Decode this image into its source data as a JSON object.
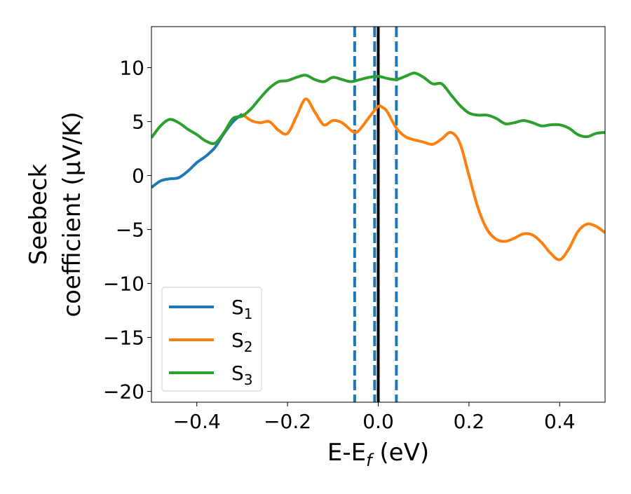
{
  "chart_data": {
    "type": "line",
    "title": "",
    "xlabel": "E-E",
    "xlabel_sub": "f",
    "xlabel_suffix": " (eV)",
    "ylabel_line1": "Seebeck",
    "ylabel_line2": "coefficient  (μV/K)",
    "xlim": [
      -0.5,
      0.5
    ],
    "ylim": [
      -21,
      13.8
    ],
    "xticks": [
      -0.4,
      -0.2,
      0.0,
      0.2,
      0.4
    ],
    "xtick_labels": [
      "−0.4",
      "−0.2",
      "0.0",
      "0.2",
      "0.4"
    ],
    "yticks": [
      10,
      5,
      0,
      -5,
      -10,
      -15,
      -20
    ],
    "ytick_labels": [
      "10",
      "5",
      "0",
      "−5",
      "−10",
      "−15",
      "−20"
    ],
    "grid": false,
    "legend_position": "lower-left",
    "vlines": [
      {
        "x": -0.052,
        "style": "dashed",
        "color": "#1f77b4"
      },
      {
        "x": -0.008,
        "style": "dashed",
        "color": "#1f77b4"
      },
      {
        "x": 0.0,
        "style": "solid",
        "color": "#000000"
      },
      {
        "x": 0.04,
        "style": "dashed",
        "color": "#1f77b4"
      }
    ],
    "series": [
      {
        "name": "S",
        "sub": "1",
        "color": "#1f77b4",
        "x": [
          -0.5,
          -0.48,
          -0.46,
          -0.44,
          -0.42,
          -0.4,
          -0.38,
          -0.36,
          -0.34,
          -0.32,
          -0.3
        ],
        "y": [
          -1.1,
          -0.5,
          -0.3,
          -0.2,
          0.4,
          1.2,
          1.8,
          2.6,
          3.9,
          5.0,
          5.7
        ]
      },
      {
        "name": "S",
        "sub": "2",
        "color": "#ff7f0e",
        "x": [
          -0.3,
          -0.28,
          -0.26,
          -0.24,
          -0.22,
          -0.2,
          -0.18,
          -0.16,
          -0.14,
          -0.12,
          -0.1,
          -0.08,
          -0.06,
          -0.05,
          -0.04,
          -0.02,
          0.0,
          0.01,
          0.02,
          0.04,
          0.06,
          0.08,
          0.1,
          0.12,
          0.14,
          0.16,
          0.18,
          0.2,
          0.22,
          0.24,
          0.26,
          0.28,
          0.3,
          0.32,
          0.34,
          0.36,
          0.38,
          0.4,
          0.42,
          0.44,
          0.46,
          0.48,
          0.5
        ],
        "y": [
          5.7,
          5.1,
          4.9,
          5.0,
          4.2,
          3.9,
          5.5,
          7.1,
          5.9,
          4.7,
          5.1,
          4.9,
          4.2,
          4.0,
          4.3,
          5.4,
          6.4,
          6.3,
          5.9,
          4.4,
          3.6,
          3.3,
          3.1,
          2.9,
          3.4,
          4.0,
          3.0,
          0.0,
          -3.0,
          -5.0,
          -5.9,
          -6.1,
          -5.8,
          -5.4,
          -5.5,
          -6.2,
          -7.2,
          -7.8,
          -6.8,
          -5.2,
          -4.5,
          -4.7,
          -5.3
        ]
      },
      {
        "name": "S",
        "sub": "3",
        "color": "#2ca02c",
        "x": [
          -0.5,
          -0.48,
          -0.46,
          -0.44,
          -0.42,
          -0.4,
          -0.38,
          -0.36,
          -0.34,
          -0.32,
          -0.3,
          -0.28,
          -0.26,
          -0.24,
          -0.22,
          -0.2,
          -0.18,
          -0.16,
          -0.14,
          -0.12,
          -0.1,
          -0.08,
          -0.06,
          -0.04,
          -0.02,
          0.0,
          0.02,
          0.04,
          0.06,
          0.08,
          0.1,
          0.12,
          0.14,
          0.16,
          0.18,
          0.2,
          0.22,
          0.24,
          0.26,
          0.28,
          0.3,
          0.32,
          0.34,
          0.36,
          0.38,
          0.4,
          0.42,
          0.44,
          0.46,
          0.48,
          0.5
        ],
        "y": [
          3.5,
          4.6,
          5.2,
          4.9,
          4.3,
          3.8,
          3.2,
          3.0,
          4.0,
          5.3,
          5.5,
          6.2,
          7.2,
          8.1,
          8.7,
          8.8,
          9.1,
          9.3,
          8.9,
          8.7,
          9.1,
          8.9,
          8.7,
          8.9,
          9.1,
          9.2,
          9.0,
          8.9,
          9.2,
          9.5,
          9.1,
          8.5,
          8.5,
          7.5,
          6.5,
          5.8,
          5.6,
          5.6,
          5.3,
          4.8,
          4.9,
          5.1,
          4.9,
          4.6,
          4.7,
          4.7,
          4.4,
          3.8,
          3.6,
          3.9,
          4.0
        ]
      }
    ]
  }
}
